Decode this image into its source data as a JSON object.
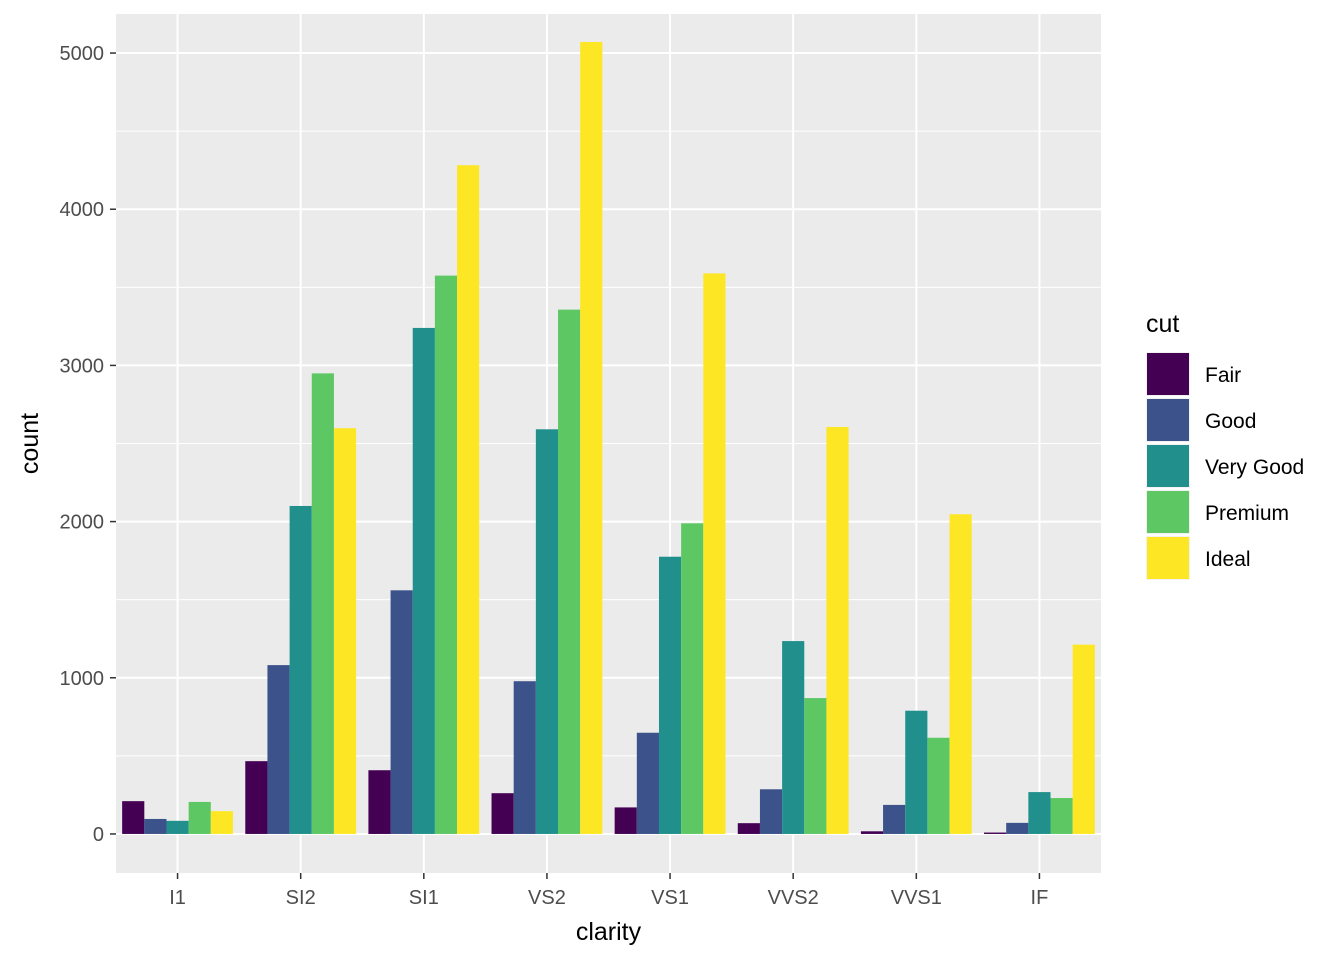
{
  "chart_data": {
    "type": "bar",
    "xlabel": "clarity",
    "ylabel": "count",
    "ylim": [
      -250,
      5250
    ],
    "yticks": [
      0,
      1000,
      2000,
      3000,
      4000,
      5000
    ],
    "grid": true,
    "legend": {
      "title": "cut",
      "placement": "right"
    },
    "categories": [
      "I1",
      "SI2",
      "SI1",
      "VS2",
      "VS1",
      "VVS2",
      "VVS1",
      "IF"
    ],
    "series": [
      {
        "name": "Fair",
        "color": "#440154",
        "values": [
          210,
          466,
          408,
          261,
          170,
          69,
          17,
          9
        ]
      },
      {
        "name": "Good",
        "color": "#3B528B",
        "values": [
          96,
          1081,
          1560,
          978,
          648,
          286,
          186,
          71
        ]
      },
      {
        "name": "Very Good",
        "color": "#21908C",
        "values": [
          84,
          2100,
          3240,
          2591,
          1775,
          1235,
          789,
          268
        ]
      },
      {
        "name": "Premium",
        "color": "#5DC863",
        "values": [
          205,
          2949,
          3575,
          3357,
          1989,
          870,
          616,
          230
        ]
      },
      {
        "name": "Ideal",
        "color": "#FDE725",
        "values": [
          146,
          2598,
          4282,
          5071,
          3589,
          2606,
          2047,
          1212
        ]
      }
    ]
  }
}
